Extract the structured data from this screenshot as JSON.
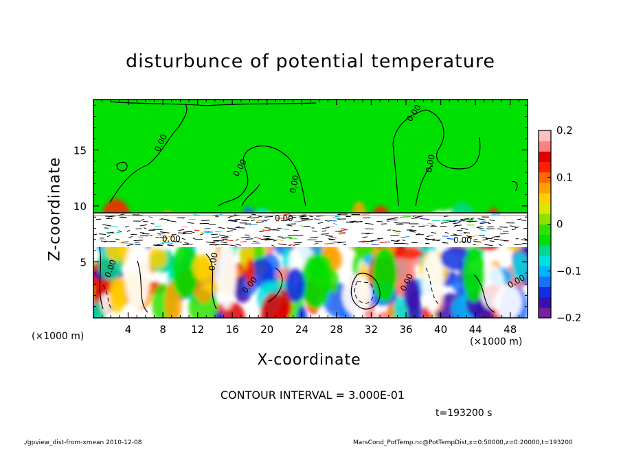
{
  "chart_data": {
    "type": "heatmap",
    "title": "disturbunce of potential temperature",
    "xlabel": "X-coordinate",
    "ylabel": "Z-coordinate",
    "x_unit_label": "(×1000 m)",
    "xlim": [
      0,
      50
    ],
    "ylim": [
      0,
      19.5
    ],
    "xticks": [
      4,
      8,
      12,
      16,
      20,
      24,
      28,
      32,
      36,
      40,
      44,
      48
    ],
    "yticks": [
      5,
      10,
      15
    ],
    "colorbar": {
      "range": [
        -0.2,
        0.2
      ],
      "ticks": [
        "0.2",
        "0.1",
        "0",
        "−0.1",
        "−0.2"
      ],
      "tick_values": [
        0.2,
        0.1,
        0,
        -0.1,
        -0.2
      ],
      "colors": [
        "#7a1fa0",
        "#3a0fb0",
        "#1030e0",
        "#1870ff",
        "#00b4ff",
        "#00e0e0",
        "#00d890",
        "#00e000",
        "#30e000",
        "#90e000",
        "#d8e800",
        "#ffd000",
        "#ffa000",
        "#ff6a00",
        "#ff2000",
        "#e00000",
        "#ff8080",
        "#ffc0c0"
      ]
    },
    "contour_label": "0.00",
    "annotations": [
      "CONTOUR INTERVAL = 3.000E-01",
      "t=193200 s"
    ]
  },
  "footer": {
    "left": "./gpview_dist-from-xmean  2010-12-08",
    "right": "MarsCond_PotTemp.nc@PotTempDist,x=0:50000,z=0:20000,t=193200"
  }
}
